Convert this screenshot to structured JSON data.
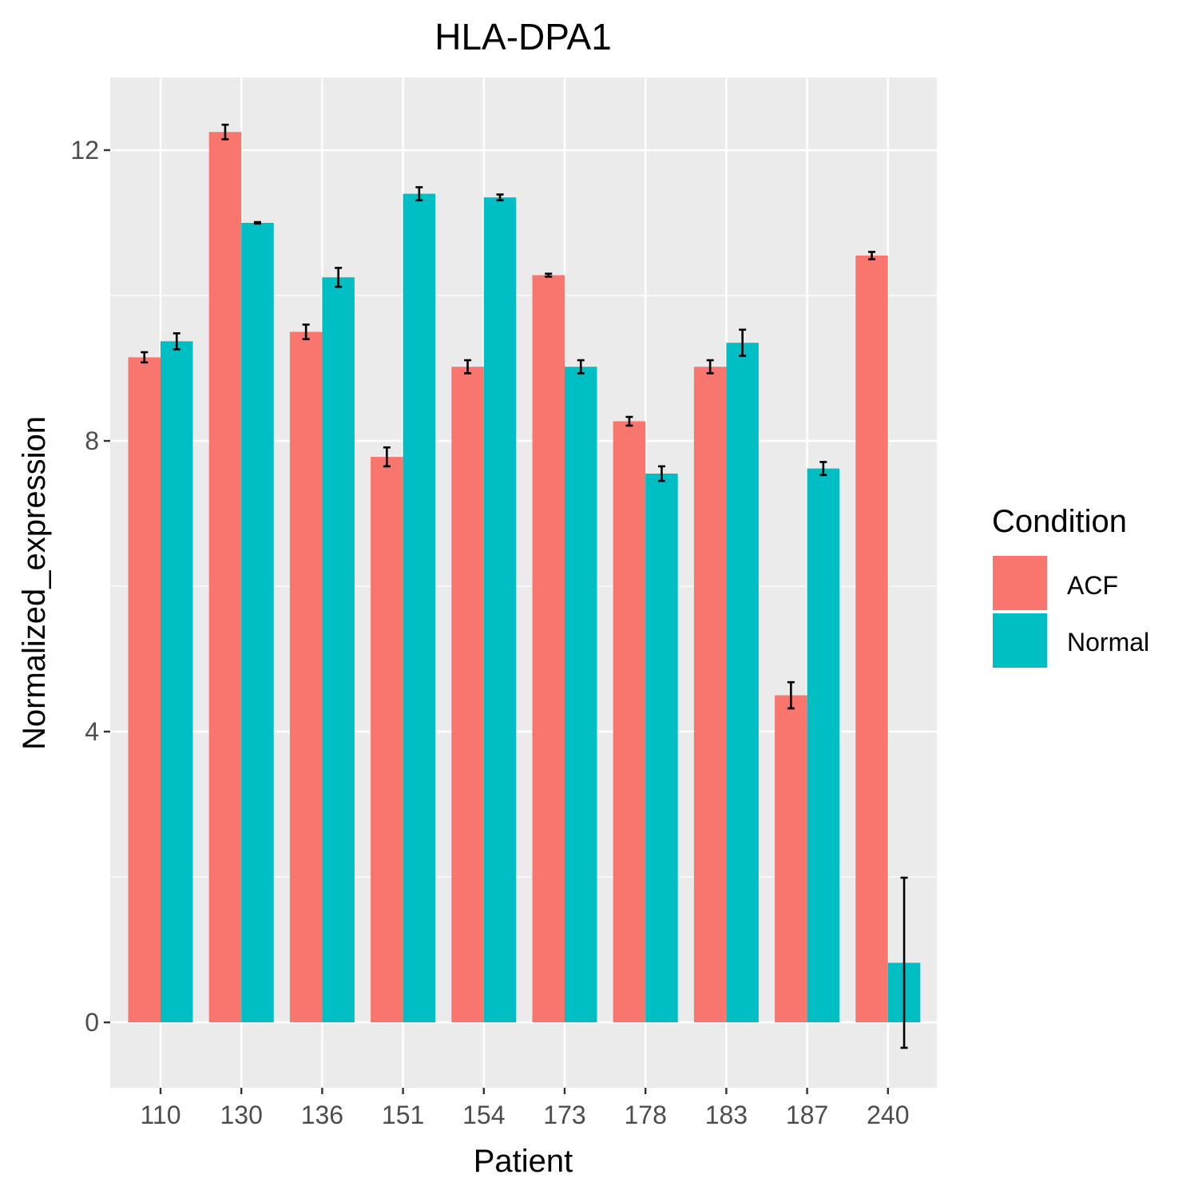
{
  "chart_data": {
    "type": "bar",
    "title": "HLA-DPA1",
    "xlabel": "Patient",
    "ylabel": "Normalized_expression",
    "categories": [
      "110",
      "130",
      "136",
      "151",
      "154",
      "173",
      "178",
      "183",
      "187",
      "240"
    ],
    "ylim": [
      -0.9,
      13.0
    ],
    "yticks": [
      0,
      4,
      8,
      12
    ],
    "yticklabels": [
      "0",
      "4",
      "8",
      "12"
    ],
    "grid": true,
    "legend": {
      "title": "Condition",
      "position": "right"
    },
    "series": [
      {
        "name": "ACF",
        "color": "#F8766D",
        "values": [
          9.15,
          12.25,
          9.5,
          7.78,
          9.02,
          10.28,
          8.27,
          9.02,
          4.5,
          10.55
        ],
        "errors": [
          0.07,
          0.1,
          0.1,
          0.13,
          0.09,
          0.02,
          0.06,
          0.09,
          0.18,
          0.05
        ]
      },
      {
        "name": "Normal",
        "color": "#00BFC4",
        "values": [
          9.37,
          11.0,
          10.25,
          11.4,
          11.35,
          9.02,
          7.55,
          9.35,
          7.62,
          0.82
        ],
        "errors": [
          0.11,
          0.01,
          0.13,
          0.09,
          0.04,
          0.09,
          0.1,
          0.18,
          0.09,
          1.17
        ]
      }
    ]
  }
}
